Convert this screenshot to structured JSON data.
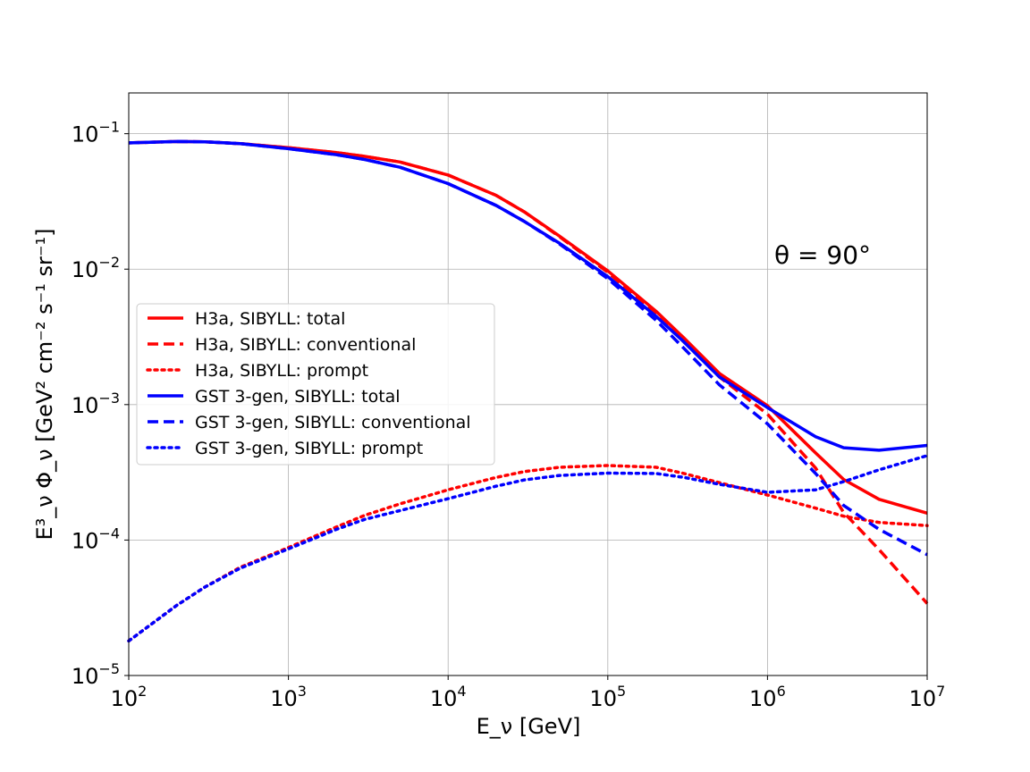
{
  "chart_data": {
    "type": "line",
    "title": "",
    "xlabel": "E_ν [GeV]",
    "ylabel": "E³_ν Φ_ν [GeV² cm⁻² s⁻¹ sr⁻¹]",
    "xscale": "log",
    "yscale": "log",
    "xlim": [
      100,
      10000000
    ],
    "ylim": [
      1e-05,
      0.2
    ],
    "grid": true,
    "legend_position": "center-left",
    "annotation": "θ = 90°",
    "x_ticks": [
      {
        "base": "10",
        "exp": "2"
      },
      {
        "base": "10",
        "exp": "3"
      },
      {
        "base": "10",
        "exp": "4"
      },
      {
        "base": "10",
        "exp": "5"
      },
      {
        "base": "10",
        "exp": "6"
      },
      {
        "base": "10",
        "exp": "7"
      }
    ],
    "y_ticks": [
      {
        "base": "10",
        "exp": "−5"
      },
      {
        "base": "10",
        "exp": "−4"
      },
      {
        "base": "10",
        "exp": "−3"
      },
      {
        "base": "10",
        "exp": "−2"
      },
      {
        "base": "10",
        "exp": "−1"
      }
    ],
    "x": [
      100,
      200,
      300,
      500,
      1000,
      2000,
      3000,
      5000,
      10000,
      20000,
      30000,
      50000,
      100000,
      200000,
      300000,
      500000,
      1000000,
      2000000,
      3000000,
      5000000,
      10000000
    ],
    "series": [
      {
        "name": "H3a, SIBYLL: total",
        "color": "#ff0000",
        "style": "solid",
        "values": [
          0.0855,
          0.0875,
          0.0872,
          0.0845,
          0.0788,
          0.0725,
          0.068,
          0.0618,
          0.0495,
          0.035,
          0.0265,
          0.0175,
          0.0097,
          0.0049,
          0.0031,
          0.0017,
          0.00098,
          0.00044,
          0.00028,
          0.0002,
          0.000158
        ]
      },
      {
        "name": "H3a, SIBYLL: conventional",
        "color": "#ff0000",
        "style": "dashed",
        "values": [
          0.0855,
          0.0875,
          0.0872,
          0.0845,
          0.0788,
          0.0725,
          0.068,
          0.0618,
          0.0495,
          0.035,
          0.0265,
          0.0173,
          0.0095,
          0.0046,
          0.0029,
          0.0016,
          0.00085,
          0.00034,
          0.00016,
          8.5e-05,
          3.4e-05
        ]
      },
      {
        "name": "H3a, SIBYLL: prompt",
        "color": "#ff0000",
        "style": "dotted",
        "values": [
          1.8e-05,
          3.3e-05,
          4.5e-05,
          6.3e-05,
          8.8e-05,
          0.000125,
          0.000152,
          0.000185,
          0.000235,
          0.00029,
          0.00032,
          0.000345,
          0.000355,
          0.000345,
          0.00031,
          0.000265,
          0.000215,
          0.000172,
          0.00015,
          0.000135,
          0.000128
        ]
      },
      {
        "name": "GST 3-gen, SIBYLL: total",
        "color": "#0000ff",
        "style": "solid",
        "values": [
          0.0855,
          0.0875,
          0.0872,
          0.0845,
          0.0775,
          0.07,
          0.0645,
          0.0565,
          0.0428,
          0.0295,
          0.0225,
          0.0155,
          0.0088,
          0.0045,
          0.0029,
          0.0016,
          0.00095,
          0.00058,
          0.00048,
          0.00046,
          0.0005
        ]
      },
      {
        "name": "GST 3-gen, SIBYLL: conventional",
        "color": "#0000ff",
        "style": "dashed",
        "values": [
          0.0855,
          0.0875,
          0.0872,
          0.0845,
          0.0775,
          0.07,
          0.0645,
          0.0565,
          0.0428,
          0.0295,
          0.0225,
          0.0153,
          0.0085,
          0.0042,
          0.0026,
          0.0014,
          0.00072,
          0.00031,
          0.00018,
          0.00012,
          7.8e-05
        ]
      },
      {
        "name": "GST 3-gen, SIBYLL: prompt",
        "color": "#0000ff",
        "style": "dotted",
        "values": [
          1.8e-05,
          3.3e-05,
          4.5e-05,
          6.2e-05,
          8.6e-05,
          0.00012,
          0.000142,
          0.000165,
          0.000202,
          0.00025,
          0.000278,
          0.0003,
          0.000312,
          0.00031,
          0.00029,
          0.000258,
          0.000225,
          0.000235,
          0.00027,
          0.00033,
          0.00042
        ]
      }
    ]
  }
}
